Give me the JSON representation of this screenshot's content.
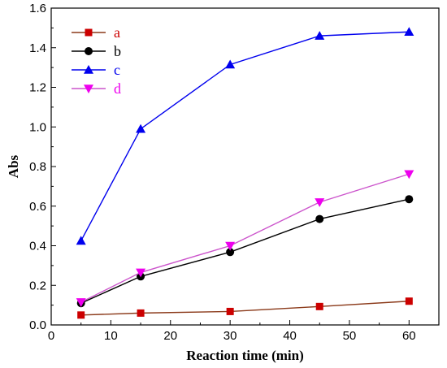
{
  "chart_data": {
    "type": "line",
    "xlabel": "Reaction time (min)",
    "ylabel": "Abs",
    "xlim": [
      0,
      65
    ],
    "ylim": [
      0,
      1.6
    ],
    "x_ticks": [
      0,
      10,
      20,
      30,
      40,
      50,
      60
    ],
    "y_ticks": [
      0.0,
      0.2,
      0.4,
      0.6,
      0.8,
      1.0,
      1.2,
      1.4,
      1.6
    ],
    "x_tick_labels": [
      "0",
      "10",
      "20",
      "30",
      "40",
      "50",
      "60"
    ],
    "y_tick_labels": [
      "0.0",
      "0.2",
      "0.4",
      "0.6",
      "0.8",
      "1.0",
      "1.2",
      "1.4",
      "1.6"
    ],
    "grid": false,
    "legend_position": "top-left",
    "x": [
      5,
      15,
      30,
      45,
      60
    ],
    "series": [
      {
        "name": "a",
        "values": [
          0.05,
          0.06,
          0.068,
          0.093,
          0.12
        ],
        "color": "#cc0000",
        "line_color": "#8b3a1a",
        "marker": "square"
      },
      {
        "name": "b",
        "values": [
          0.11,
          0.245,
          0.368,
          0.535,
          0.635
        ],
        "color": "#000000",
        "line_color": "#000000",
        "marker": "circle"
      },
      {
        "name": "c",
        "values": [
          0.425,
          0.99,
          1.315,
          1.46,
          1.48
        ],
        "color": "#0000ee",
        "line_color": "#0000ee",
        "marker": "triangle-up"
      },
      {
        "name": "d",
        "values": [
          0.115,
          0.265,
          0.4,
          0.62,
          0.762
        ],
        "color": "#ee00ee",
        "line_color": "#cc55cc",
        "marker": "triangle-down"
      }
    ]
  }
}
